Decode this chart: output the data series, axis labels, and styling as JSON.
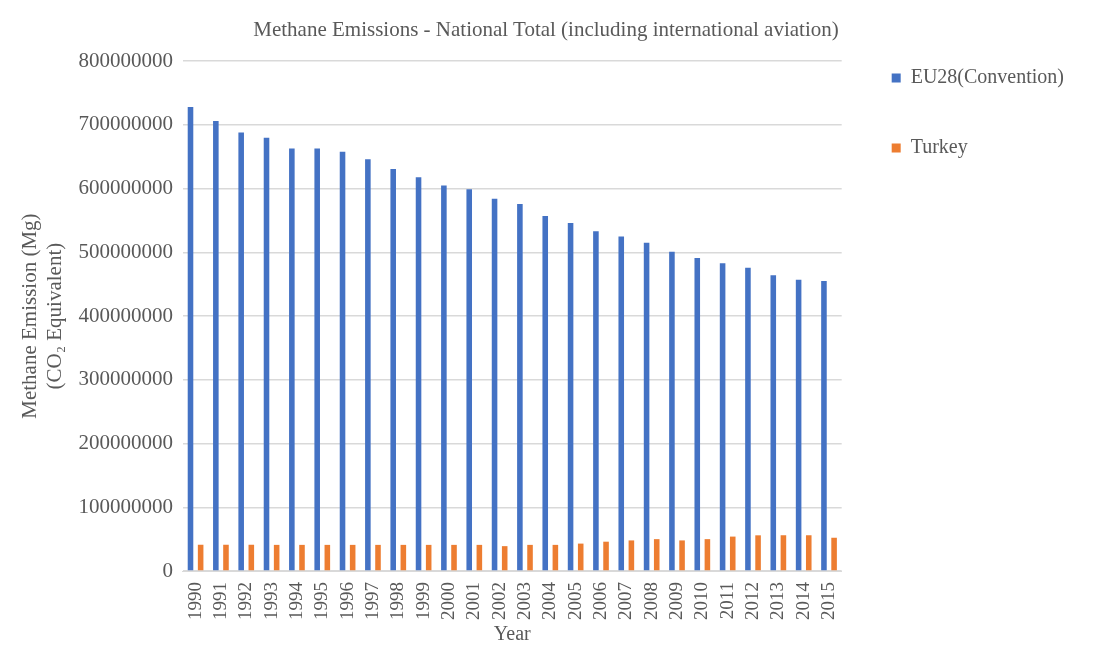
{
  "chart_data": {
    "type": "bar",
    "title": "Methane Emissions - National Total (including international aviation)",
    "xlabel": "Year",
    "ylabel": [
      "Methane Emission (Mg)",
      "(CO₂ Equivalent)"
    ],
    "categories": [
      "1990",
      "1991",
      "1992",
      "1993",
      "1994",
      "1995",
      "1996",
      "1997",
      "1998",
      "1999",
      "2000",
      "2001",
      "2002",
      "2003",
      "2004",
      "2005",
      "2006",
      "2007",
      "2008",
      "2009",
      "2010",
      "2011",
      "2012",
      "2013",
      "2014",
      "2015"
    ],
    "series": [
      {
        "name": "EU28(Convention)",
        "color": "#4472c4",
        "values": [
          728000000,
          706000000,
          688000000,
          680000000,
          663000000,
          663000000,
          658000000,
          646000000,
          631000000,
          618000000,
          605000000,
          599000000,
          584000000,
          576000000,
          557000000,
          546000000,
          533000000,
          525000000,
          515000000,
          501000000,
          491000000,
          483000000,
          476000000,
          464000000,
          457000000,
          455000000
        ]
      },
      {
        "name": "Turkey",
        "color": "#ed7d31",
        "values": [
          41000000,
          41000000,
          41000000,
          41000000,
          41000000,
          41000000,
          41000000,
          41000000,
          41000000,
          41000000,
          41000000,
          41000000,
          39000000,
          41000000,
          41000000,
          43000000,
          46000000,
          48000000,
          50000000,
          48000000,
          50000000,
          54000000,
          56000000,
          56000000,
          56000000,
          52000000
        ]
      }
    ],
    "ylim": [
      0,
      800000000
    ],
    "yticks": [
      0,
      100000000,
      200000000,
      300000000,
      400000000,
      500000000,
      600000000,
      700000000,
      800000000
    ],
    "grid": "y",
    "legend": "right"
  }
}
